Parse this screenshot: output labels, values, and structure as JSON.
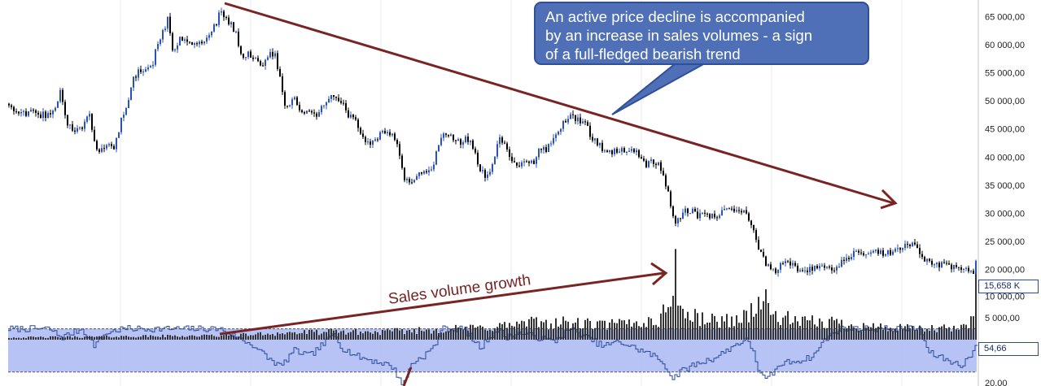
{
  "chart_data": {
    "type": "candlestick",
    "price_axis": {
      "ylim": [
        17000,
        68000
      ],
      "ticks": [
        "65 000,00",
        "60 000,00",
        "55 000,00",
        "50 000,00",
        "45 000,00",
        "40 000,00",
        "35 000,00",
        "30 000,00",
        "25 000,00",
        "20 000,00"
      ],
      "tick_values": [
        65000,
        60000,
        55000,
        50000,
        45000,
        40000,
        35000,
        30000,
        25000,
        20000
      ]
    },
    "price_path": [
      [
        0,
        45500
      ],
      [
        10,
        49500
      ],
      [
        22,
        48000
      ],
      [
        30,
        47500
      ],
      [
        38,
        48500
      ],
      [
        48,
        47500
      ],
      [
        58,
        47500
      ],
      [
        66,
        48500
      ],
      [
        74,
        52000
      ],
      [
        80,
        46500
      ],
      [
        88,
        44500
      ],
      [
        100,
        45500
      ],
      [
        108,
        48000
      ],
      [
        115,
        43000
      ],
      [
        120,
        41000
      ],
      [
        132,
        42500
      ],
      [
        140,
        41500
      ],
      [
        148,
        47000
      ],
      [
        155,
        48500
      ],
      [
        162,
        53500
      ],
      [
        170,
        55500
      ],
      [
        178,
        56000
      ],
      [
        186,
        56000
      ],
      [
        192,
        60500
      ],
      [
        198,
        62000
      ],
      [
        205,
        64500
      ],
      [
        212,
        58000
      ],
      [
        220,
        61500
      ],
      [
        230,
        61000
      ],
      [
        240,
        60000
      ],
      [
        250,
        61000
      ],
      [
        258,
        62500
      ],
      [
        265,
        64000
      ],
      [
        270,
        66500
      ],
      [
        275,
        64500
      ],
      [
        282,
        64000
      ],
      [
        290,
        61500
      ],
      [
        296,
        58000
      ],
      [
        305,
        58500
      ],
      [
        313,
        57500
      ],
      [
        322,
        56500
      ],
      [
        330,
        58500
      ],
      [
        337,
        58000
      ],
      [
        342,
        55000
      ],
      [
        348,
        50000
      ],
      [
        352,
        49000
      ],
      [
        360,
        50500
      ],
      [
        370,
        47500
      ],
      [
        380,
        48000
      ],
      [
        390,
        47500
      ],
      [
        400,
        50000
      ],
      [
        410,
        51500
      ],
      [
        418,
        50000
      ],
      [
        426,
        47500
      ],
      [
        434,
        47000
      ],
      [
        440,
        45500
      ],
      [
        448,
        42500
      ],
      [
        458,
        43000
      ],
      [
        466,
        44000
      ],
      [
        474,
        44500
      ],
      [
        482,
        44000
      ],
      [
        490,
        40500
      ],
      [
        495,
        36500
      ],
      [
        502,
        35500
      ],
      [
        510,
        36500
      ],
      [
        520,
        37500
      ],
      [
        530,
        38000
      ],
      [
        540,
        43000
      ],
      [
        548,
        44500
      ],
      [
        556,
        43500
      ],
      [
        564,
        42500
      ],
      [
        572,
        43500
      ],
      [
        580,
        42000
      ],
      [
        588,
        38000
      ],
      [
        596,
        36500
      ],
      [
        604,
        38500
      ],
      [
        612,
        43000
      ],
      [
        620,
        42500
      ],
      [
        628,
        39000
      ],
      [
        636,
        38500
      ],
      [
        645,
        39500
      ],
      [
        655,
        39000
      ],
      [
        662,
        41500
      ],
      [
        670,
        41500
      ],
      [
        680,
        43500
      ],
      [
        690,
        46000
      ],
      [
        700,
        47500
      ],
      [
        710,
        46500
      ],
      [
        718,
        46500
      ],
      [
        725,
        43500
      ],
      [
        732,
        42500
      ],
      [
        740,
        41500
      ],
      [
        750,
        40500
      ],
      [
        760,
        41500
      ],
      [
        768,
        41000
      ],
      [
        776,
        41500
      ],
      [
        784,
        40500
      ],
      [
        792,
        38500
      ],
      [
        800,
        39500
      ],
      [
        808,
        38500
      ],
      [
        815,
        36000
      ],
      [
        820,
        33500
      ],
      [
        825,
        30000
      ],
      [
        830,
        28000
      ],
      [
        838,
        30500
      ],
      [
        848,
        30500
      ],
      [
        858,
        29500
      ],
      [
        868,
        29500
      ],
      [
        878,
        29500
      ],
      [
        886,
        30500
      ],
      [
        894,
        31000
      ],
      [
        902,
        30500
      ],
      [
        910,
        30500
      ],
      [
        918,
        29500
      ],
      [
        924,
        27500
      ],
      [
        930,
        24500
      ],
      [
        936,
        22000
      ],
      [
        942,
        20500
      ],
      [
        950,
        19500
      ],
      [
        958,
        20500
      ],
      [
        966,
        21000
      ],
      [
        974,
        20500
      ],
      [
        982,
        19500
      ],
      [
        990,
        19500
      ],
      [
        1000,
        20500
      ],
      [
        1008,
        21000
      ],
      [
        1016,
        20500
      ],
      [
        1024,
        19500
      ],
      [
        1032,
        21000
      ],
      [
        1040,
        22000
      ],
      [
        1048,
        23000
      ],
      [
        1056,
        22500
      ],
      [
        1064,
        22500
      ],
      [
        1072,
        23500
      ],
      [
        1080,
        23000
      ],
      [
        1090,
        23000
      ],
      [
        1100,
        23500
      ],
      [
        1110,
        24000
      ],
      [
        1120,
        24500
      ],
      [
        1128,
        23500
      ],
      [
        1134,
        22000
      ],
      [
        1140,
        21000
      ],
      [
        1150,
        21000
      ],
      [
        1160,
        20500
      ],
      [
        1170,
        20500
      ],
      [
        1180,
        20000
      ],
      [
        1190,
        20000
      ],
      [
        1196,
        19500
      ],
      [
        1200,
        21500
      ]
    ],
    "volume_axis": {
      "ylim": [
        0,
        22000
      ],
      "ticks": [
        "10 000,00",
        "5 000,00"
      ],
      "tick_values": [
        10000,
        5000
      ],
      "last_value_label": "15,658 K"
    },
    "volume_path": [
      [
        0,
        500
      ],
      [
        100,
        700
      ],
      [
        200,
        900
      ],
      [
        270,
        1000
      ],
      [
        300,
        1200
      ],
      [
        340,
        1600
      ],
      [
        380,
        1800
      ],
      [
        420,
        2000
      ],
      [
        460,
        1800
      ],
      [
        500,
        2200
      ],
      [
        540,
        2500
      ],
      [
        580,
        2800
      ],
      [
        620,
        3500
      ],
      [
        660,
        4300
      ],
      [
        700,
        4100
      ],
      [
        740,
        3600
      ],
      [
        780,
        4200
      ],
      [
        810,
        4800
      ],
      [
        820,
        8500
      ],
      [
        825,
        14000
      ],
      [
        828,
        20000
      ],
      [
        832,
        10500
      ],
      [
        840,
        6000
      ],
      [
        880,
        4600
      ],
      [
        910,
        5200
      ],
      [
        930,
        8500
      ],
      [
        936,
        11000
      ],
      [
        945,
        6500
      ],
      [
        980,
        4200
      ],
      [
        1020,
        4400
      ],
      [
        1060,
        3400
      ],
      [
        1100,
        2800
      ],
      [
        1140,
        2600
      ],
      [
        1180,
        2800
      ],
      [
        1190,
        3500
      ],
      [
        1196,
        9000
      ],
      [
        1200,
        15658
      ]
    ],
    "rsi_axis": {
      "ylim": [
        17,
        84
      ],
      "ticks": [
        "20,00"
      ],
      "tick_values": [
        20
      ],
      "last_value_label": "54,66",
      "upper_band": 70,
      "lower_band": 30
    },
    "rsi_path": [
      [
        0,
        70
      ],
      [
        60,
        70
      ],
      [
        75,
        62
      ],
      [
        100,
        70
      ],
      [
        115,
        55
      ],
      [
        130,
        66
      ],
      [
        150,
        70
      ],
      [
        270,
        70
      ],
      [
        290,
        62
      ],
      [
        310,
        55
      ],
      [
        330,
        42
      ],
      [
        345,
        35
      ],
      [
        360,
        50
      ],
      [
        380,
        45
      ],
      [
        400,
        58
      ],
      [
        410,
        66
      ],
      [
        420,
        52
      ],
      [
        440,
        44
      ],
      [
        460,
        40
      ],
      [
        480,
        36
      ],
      [
        495,
        18
      ],
      [
        505,
        38
      ],
      [
        520,
        45
      ],
      [
        535,
        55
      ],
      [
        540,
        70
      ],
      [
        570,
        70
      ],
      [
        580,
        60
      ],
      [
        590,
        52
      ],
      [
        600,
        62
      ],
      [
        612,
        70
      ],
      [
        620,
        62
      ],
      [
        640,
        66
      ],
      [
        660,
        62
      ],
      [
        680,
        58
      ],
      [
        700,
        70
      ],
      [
        720,
        62
      ],
      [
        740,
        54
      ],
      [
        760,
        58
      ],
      [
        780,
        52
      ],
      [
        800,
        46
      ],
      [
        815,
        38
      ],
      [
        825,
        24
      ],
      [
        835,
        30
      ],
      [
        850,
        36
      ],
      [
        880,
        44
      ],
      [
        900,
        54
      ],
      [
        915,
        60
      ],
      [
        925,
        50
      ],
      [
        932,
        30
      ],
      [
        940,
        22
      ],
      [
        950,
        30
      ],
      [
        960,
        38
      ],
      [
        990,
        42
      ],
      [
        1000,
        46
      ],
      [
        1010,
        58
      ],
      [
        1030,
        70
      ],
      [
        1130,
        70
      ],
      [
        1140,
        48
      ],
      [
        1160,
        42
      ],
      [
        1180,
        36
      ],
      [
        1190,
        44
      ],
      [
        1196,
        50
      ],
      [
        1200,
        54.66
      ]
    ],
    "annotations": [
      "An active price decline is accompanied",
      "by an increase in sales volumes - a sign",
      "of a full-fledged bearish trend",
      "Sales volume growth"
    ],
    "colors": {
      "candle_up": "#2a52be",
      "candle_down": "#000000",
      "volume_bar": "#333333",
      "rsi_line": "#2a4a9a",
      "rsi_band_fill": "#aab8f2",
      "trend_arrow": "#7a2323",
      "callout_fill": "#4f6fb7"
    }
  }
}
